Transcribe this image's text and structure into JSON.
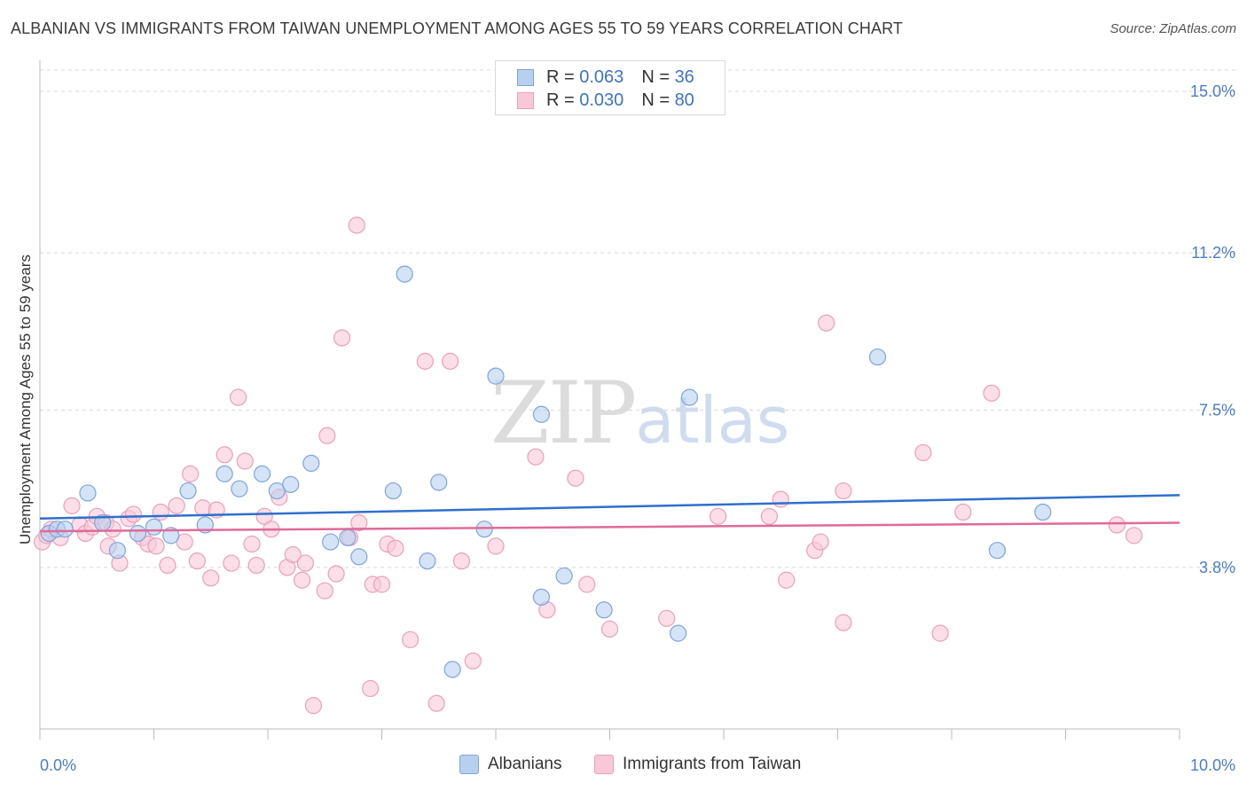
{
  "header": {
    "title": "ALBANIAN VS IMMIGRANTS FROM TAIWAN UNEMPLOYMENT AMONG AGES 55 TO 59 YEARS CORRELATION CHART",
    "source": "Source: ZipAtlas.com"
  },
  "watermark": {
    "zip": "ZIP",
    "atlas": "atlas"
  },
  "legend": {
    "rows": [
      {
        "r_label": "R =",
        "r_value": "0.063",
        "n_label": "N =",
        "n_value": "36"
      },
      {
        "r_label": "R =",
        "r_value": "0.030",
        "n_label": "N =",
        "n_value": "80"
      }
    ]
  },
  "colors": {
    "albanians_fill": "#b8d0f0",
    "albanians_stroke": "#7ea4dc",
    "albanians_line": "#2f6fce",
    "taiwan_fill": "#f8c8d8",
    "taiwan_stroke": "#e9a0bb",
    "taiwan_line": "#e06a98",
    "tick": "#4a7cc9",
    "grid": "#d9d9d9"
  },
  "chart_data": {
    "type": "scatter",
    "title": "ALBANIAN VS IMMIGRANTS FROM TAIWAN UNEMPLOYMENT AMONG AGES 55 TO 59 YEARS CORRELATION CHART",
    "xlabel": "",
    "ylabel": "Unemployment Among Ages 55 to 59 years",
    "xlim": [
      0,
      10
    ],
    "ylim": [
      0,
      15.5
    ],
    "x_tick_labels": [
      "0.0%",
      "10.0%"
    ],
    "y_ticks": [
      3.8,
      7.5,
      11.2,
      15.0
    ],
    "y_tick_labels": [
      "3.8%",
      "7.5%",
      "11.2%",
      "15.0%"
    ],
    "grid": true,
    "series": [
      {
        "name": "Albanians",
        "r": 0.063,
        "n": 36,
        "trend": {
          "x": [
            0,
            10
          ],
          "y": [
            4.95,
            5.5
          ]
        },
        "points": [
          {
            "x": 0.08,
            "y": 4.6
          },
          {
            "x": 0.15,
            "y": 4.7
          },
          {
            "x": 0.22,
            "y": 4.7
          },
          {
            "x": 0.42,
            "y": 5.55
          },
          {
            "x": 0.55,
            "y": 4.85
          },
          {
            "x": 0.68,
            "y": 4.2
          },
          {
            "x": 0.86,
            "y": 4.6
          },
          {
            "x": 1.0,
            "y": 4.75
          },
          {
            "x": 1.15,
            "y": 4.55
          },
          {
            "x": 1.3,
            "y": 5.6
          },
          {
            "x": 1.45,
            "y": 4.8
          },
          {
            "x": 1.62,
            "y": 6.0
          },
          {
            "x": 1.75,
            "y": 5.65
          },
          {
            "x": 1.95,
            "y": 6.0
          },
          {
            "x": 2.08,
            "y": 5.6
          },
          {
            "x": 2.2,
            "y": 5.75
          },
          {
            "x": 2.38,
            "y": 6.25
          },
          {
            "x": 2.55,
            "y": 4.4
          },
          {
            "x": 2.7,
            "y": 4.5
          },
          {
            "x": 2.8,
            "y": 4.05
          },
          {
            "x": 3.1,
            "y": 5.6
          },
          {
            "x": 3.2,
            "y": 10.7
          },
          {
            "x": 3.4,
            "y": 3.95
          },
          {
            "x": 3.5,
            "y": 5.8
          },
          {
            "x": 3.62,
            "y": 1.4
          },
          {
            "x": 3.9,
            "y": 4.7
          },
          {
            "x": 4.0,
            "y": 8.3
          },
          {
            "x": 4.4,
            "y": 7.4
          },
          {
            "x": 4.4,
            "y": 3.1
          },
          {
            "x": 4.6,
            "y": 3.6
          },
          {
            "x": 4.95,
            "y": 2.8
          },
          {
            "x": 5.6,
            "y": 2.25
          },
          {
            "x": 5.7,
            "y": 7.8
          },
          {
            "x": 7.35,
            "y": 8.75
          },
          {
            "x": 8.4,
            "y": 4.2
          },
          {
            "x": 8.8,
            "y": 5.1
          }
        ]
      },
      {
        "name": "Immigrants from Taiwan",
        "r": 0.03,
        "n": 80,
        "trend": {
          "x": [
            0,
            10
          ],
          "y": [
            4.65,
            4.85
          ]
        },
        "points": [
          {
            "x": 0.02,
            "y": 4.4
          },
          {
            "x": 0.06,
            "y": 4.55
          },
          {
            "x": 0.1,
            "y": 4.7
          },
          {
            "x": 0.18,
            "y": 4.5
          },
          {
            "x": 0.28,
            "y": 5.25
          },
          {
            "x": 0.35,
            "y": 4.8
          },
          {
            "x": 0.4,
            "y": 4.6
          },
          {
            "x": 0.46,
            "y": 4.75
          },
          {
            "x": 0.5,
            "y": 5.0
          },
          {
            "x": 0.58,
            "y": 4.85
          },
          {
            "x": 0.6,
            "y": 4.3
          },
          {
            "x": 0.64,
            "y": 4.7
          },
          {
            "x": 0.7,
            "y": 3.9
          },
          {
            "x": 0.78,
            "y": 4.95
          },
          {
            "x": 0.82,
            "y": 5.05
          },
          {
            "x": 0.9,
            "y": 4.5
          },
          {
            "x": 0.95,
            "y": 4.35
          },
          {
            "x": 1.02,
            "y": 4.3
          },
          {
            "x": 1.06,
            "y": 5.1
          },
          {
            "x": 1.12,
            "y": 3.85
          },
          {
            "x": 1.2,
            "y": 5.25
          },
          {
            "x": 1.27,
            "y": 4.4
          },
          {
            "x": 1.32,
            "y": 6.0
          },
          {
            "x": 1.38,
            "y": 3.95
          },
          {
            "x": 1.43,
            "y": 5.2
          },
          {
            "x": 1.5,
            "y": 3.55
          },
          {
            "x": 1.55,
            "y": 5.15
          },
          {
            "x": 1.62,
            "y": 6.45
          },
          {
            "x": 1.68,
            "y": 3.9
          },
          {
            "x": 1.74,
            "y": 7.8
          },
          {
            "x": 1.8,
            "y": 6.3
          },
          {
            "x": 1.86,
            "y": 4.35
          },
          {
            "x": 1.9,
            "y": 3.85
          },
          {
            "x": 1.97,
            "y": 5.0
          },
          {
            "x": 2.03,
            "y": 4.7
          },
          {
            "x": 2.1,
            "y": 5.45
          },
          {
            "x": 2.17,
            "y": 3.8
          },
          {
            "x": 2.22,
            "y": 4.1
          },
          {
            "x": 2.3,
            "y": 3.5
          },
          {
            "x": 2.33,
            "y": 3.9
          },
          {
            "x": 2.4,
            "y": 0.55
          },
          {
            "x": 2.5,
            "y": 3.25
          },
          {
            "x": 2.52,
            "y": 6.9
          },
          {
            "x": 2.6,
            "y": 3.65
          },
          {
            "x": 2.65,
            "y": 9.2
          },
          {
            "x": 2.72,
            "y": 4.5
          },
          {
            "x": 2.78,
            "y": 11.85
          },
          {
            "x": 2.8,
            "y": 4.85
          },
          {
            "x": 2.9,
            "y": 0.95
          },
          {
            "x": 2.92,
            "y": 3.4
          },
          {
            "x": 3.0,
            "y": 3.4
          },
          {
            "x": 3.05,
            "y": 4.35
          },
          {
            "x": 3.12,
            "y": 4.25
          },
          {
            "x": 3.25,
            "y": 2.1
          },
          {
            "x": 3.38,
            "y": 8.65
          },
          {
            "x": 3.48,
            "y": 0.6
          },
          {
            "x": 3.6,
            "y": 8.65
          },
          {
            "x": 3.7,
            "y": 3.95
          },
          {
            "x": 3.8,
            "y": 1.6
          },
          {
            "x": 4.0,
            "y": 4.3
          },
          {
            "x": 4.35,
            "y": 6.4
          },
          {
            "x": 4.45,
            "y": 2.8
          },
          {
            "x": 4.7,
            "y": 5.9
          },
          {
            "x": 4.8,
            "y": 3.4
          },
          {
            "x": 5.0,
            "y": 2.35
          },
          {
            "x": 5.5,
            "y": 2.6
          },
          {
            "x": 5.95,
            "y": 5.0
          },
          {
            "x": 6.4,
            "y": 5.0
          },
          {
            "x": 6.5,
            "y": 5.4
          },
          {
            "x": 6.55,
            "y": 3.5
          },
          {
            "x": 6.8,
            "y": 4.2
          },
          {
            "x": 6.85,
            "y": 4.4
          },
          {
            "x": 6.9,
            "y": 9.55
          },
          {
            "x": 7.05,
            "y": 2.5
          },
          {
            "x": 7.05,
            "y": 5.6
          },
          {
            "x": 7.75,
            "y": 6.5
          },
          {
            "x": 7.9,
            "y": 2.25
          },
          {
            "x": 8.1,
            "y": 5.1
          },
          {
            "x": 8.35,
            "y": 7.9
          },
          {
            "x": 9.45,
            "y": 4.8
          },
          {
            "x": 9.6,
            "y": 4.55
          }
        ]
      }
    ]
  },
  "bottom_legend": {
    "items": [
      "Albanians",
      "Immigrants from Taiwan"
    ]
  }
}
